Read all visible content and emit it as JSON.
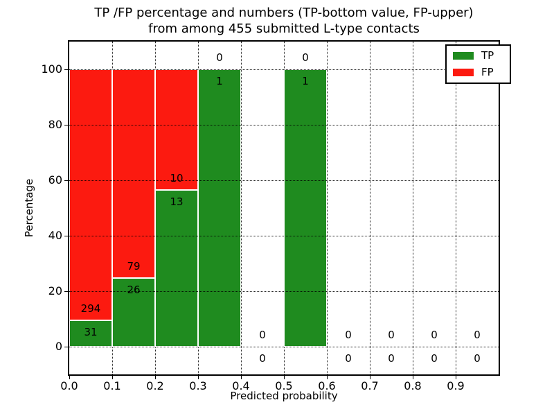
{
  "title": {
    "line1": "TP /FP percentage and numbers (TP-bottom value, FP-upper)",
    "line2": "from among 455 submitted L-type contacts"
  },
  "axes": {
    "xlabel": "Predicted probability",
    "ylabel": "Percentage",
    "xtick_labels": [
      "0.0",
      "0.1",
      "0.2",
      "0.3",
      "0.4",
      "0.5",
      "0.6",
      "0.7",
      "0.8",
      "0.9"
    ],
    "ytick_labels": [
      "0",
      "20",
      "40",
      "60",
      "80",
      "100"
    ]
  },
  "legend": {
    "position": "upper right",
    "items": [
      {
        "label": "TP",
        "color": "#1f8b1f"
      },
      {
        "label": "FP",
        "color": "#fc1a10"
      }
    ]
  },
  "colors": {
    "tp": "#1f8b1f",
    "fp": "#fc1a10",
    "grid": "#000000",
    "frame": "#000000",
    "background": "#ffffff",
    "bar_edge": "#ffffff"
  },
  "chart_data": {
    "type": "bar",
    "stacked": true,
    "orientation": "vertical",
    "title": "TP /FP percentage and numbers (TP-bottom value, FP-upper) from among 455 submitted L-type contacts",
    "xlabel": "Predicted probability",
    "ylabel": "Percentage",
    "xlim": [
      0.0,
      1.0
    ],
    "ylim": [
      -10,
      110
    ],
    "grid": true,
    "legend_position": "upper right",
    "annotation_scheme": "FP count printed just above the TP/FP boundary, TP count just below it; empty bins annotated with 0/0 around the zero line",
    "total_contacts": 455,
    "bin_width": 0.1,
    "bins": [
      {
        "range": [
          0.0,
          0.1
        ],
        "tp": 31,
        "fp": 294,
        "tp_pct": 9.5,
        "fp_pct": 90.5
      },
      {
        "range": [
          0.1,
          0.2
        ],
        "tp": 26,
        "fp": 79,
        "tp_pct": 24.8,
        "fp_pct": 75.2
      },
      {
        "range": [
          0.2,
          0.3
        ],
        "tp": 13,
        "fp": 10,
        "tp_pct": 56.5,
        "fp_pct": 43.5
      },
      {
        "range": [
          0.3,
          0.4
        ],
        "tp": 1,
        "fp": 0,
        "tp_pct": 100,
        "fp_pct": 0
      },
      {
        "range": [
          0.4,
          0.5
        ],
        "tp": 0,
        "fp": 0,
        "tp_pct": 0,
        "fp_pct": 0
      },
      {
        "range": [
          0.5,
          0.6
        ],
        "tp": 1,
        "fp": 0,
        "tp_pct": 100,
        "fp_pct": 0
      },
      {
        "range": [
          0.6,
          0.7
        ],
        "tp": 0,
        "fp": 0,
        "tp_pct": 0,
        "fp_pct": 0
      },
      {
        "range": [
          0.7,
          0.8
        ],
        "tp": 0,
        "fp": 0,
        "tp_pct": 0,
        "fp_pct": 0
      },
      {
        "range": [
          0.8,
          0.9
        ],
        "tp": 0,
        "fp": 0,
        "tp_pct": 0,
        "fp_pct": 0
      },
      {
        "range": [
          0.9,
          1.0
        ],
        "tp": 0,
        "fp": 0,
        "tp_pct": 0,
        "fp_pct": 0
      }
    ]
  }
}
